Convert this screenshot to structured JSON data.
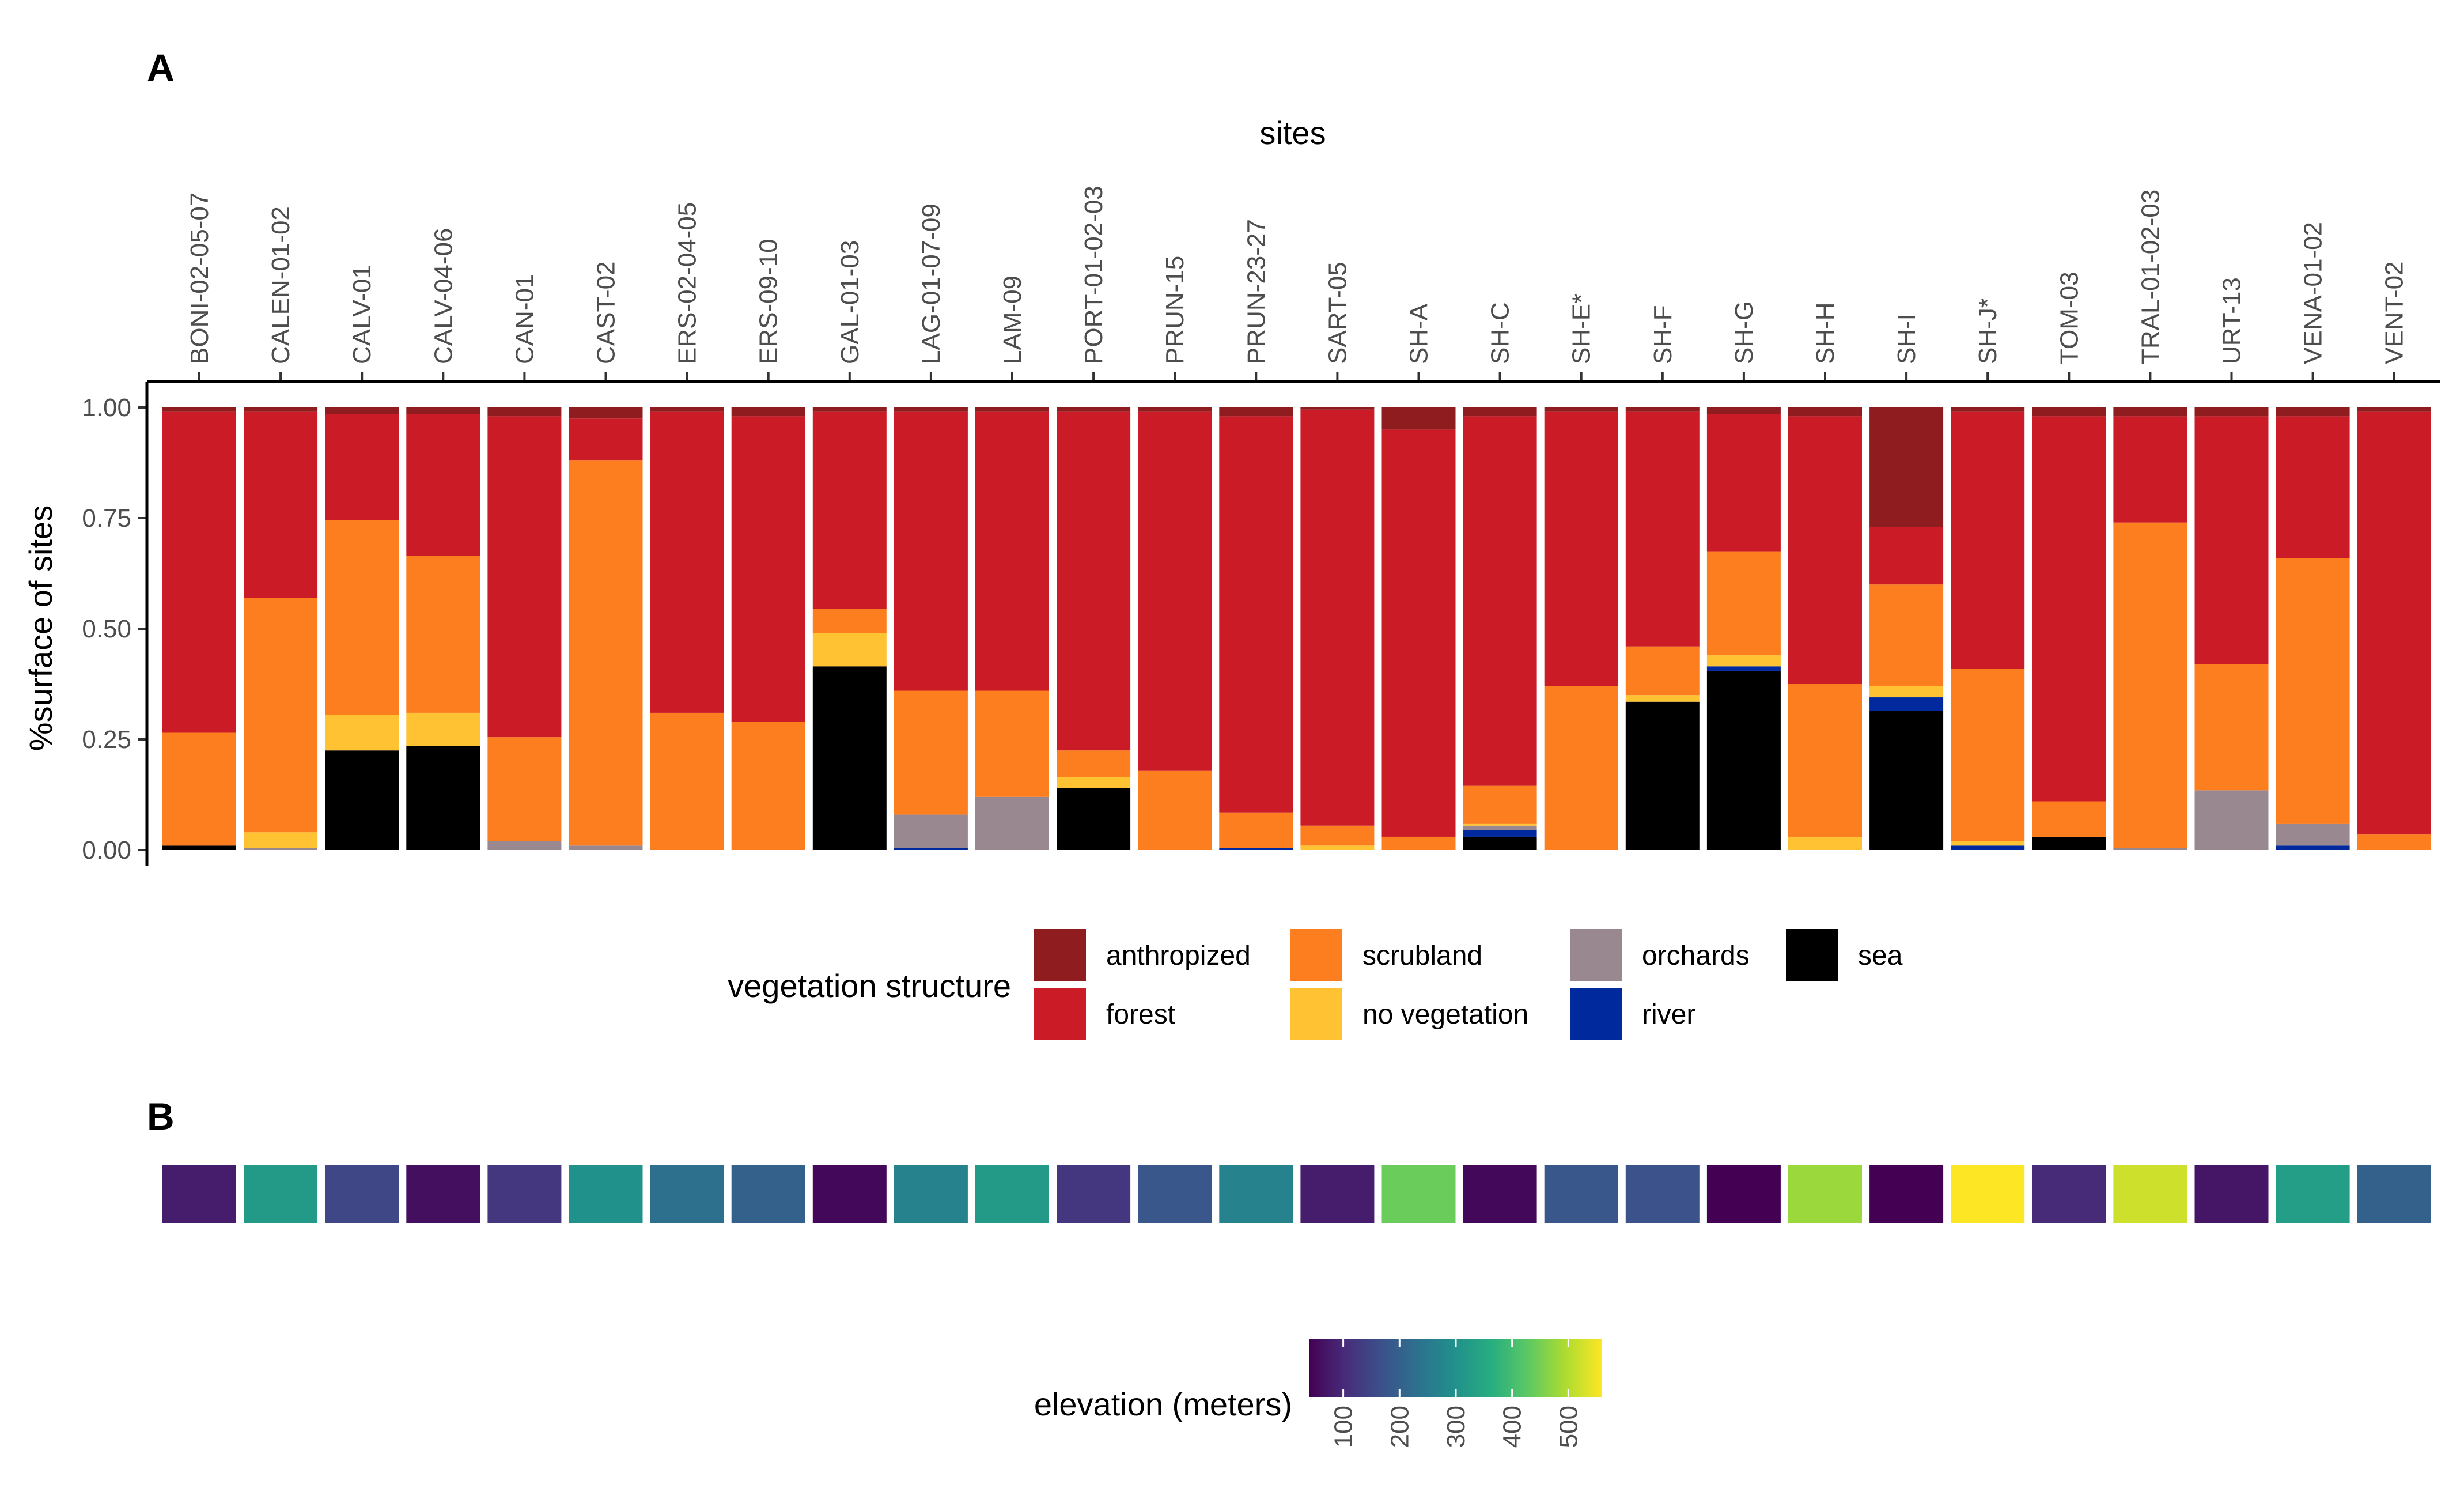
{
  "panel_a_label": "A",
  "panel_b_label": "B",
  "chart_data": [
    {
      "type": "bar",
      "stacked": true,
      "title": "",
      "xlabel": "sites",
      "xaxis_position": "top",
      "ylabel": "%surface of sites",
      "ylim": [
        0,
        1
      ],
      "yticks": [
        "0.00",
        "0.25",
        "0.50",
        "0.75",
        "1.00"
      ],
      "legend_title": "vegetation structure",
      "legend_position": "bottom",
      "categories": [
        "BONI-02-05-07",
        "CALEN-01-02",
        "CALV-01",
        "CALV-04-06",
        "CAN-01",
        "CAST-02",
        "ERS-02-04-05",
        "ERS-09-10",
        "GAL-01-03",
        "LAG-01-07-09",
        "LAM-09",
        "PORT-01-02-03",
        "PRUN-15",
        "PRUN-23-27",
        "SART-05",
        "SH-A",
        "SH-C",
        "SH-E*",
        "SH-F",
        "SH-G",
        "SH-H",
        "SH-I",
        "SH-J*",
        "TOM-03",
        "TRAL-01-02-03",
        "URT-13",
        "VENA-01-02",
        "VENT-02"
      ],
      "series": [
        {
          "name": "sea",
          "color": "#000000",
          "values": [
            0.01,
            0,
            0.225,
            0.235,
            0,
            0,
            0,
            0,
            0.415,
            0,
            0,
            0.14,
            0,
            0,
            0,
            0,
            0.03,
            0,
            0.335,
            0.405,
            0,
            0.315,
            0,
            0.03,
            0,
            0,
            0,
            0
          ]
        },
        {
          "name": "river",
          "color": "#00299e",
          "values": [
            0,
            0,
            0,
            0,
            0,
            0,
            0,
            0,
            0,
            0.005,
            0,
            0,
            0,
            0.005,
            0,
            0,
            0.015,
            0,
            0,
            0.01,
            0,
            0.03,
            0.01,
            0,
            0,
            0,
            0.01,
            0
          ]
        },
        {
          "name": "orchards",
          "color": "#9a8890",
          "values": [
            0,
            0.005,
            0,
            0,
            0.02,
            0.01,
            0,
            0,
            0,
            0.075,
            0.12,
            0,
            0,
            0,
            0,
            0,
            0.01,
            0,
            0,
            0,
            0,
            0,
            0,
            0,
            0.005,
            0.135,
            0.05,
            0
          ]
        },
        {
          "name": "no vegetation",
          "color": "#fec232",
          "values": [
            0,
            0.035,
            0.08,
            0.075,
            0,
            0,
            0,
            0,
            0.075,
            0,
            0,
            0.025,
            0,
            0,
            0.01,
            0,
            0.005,
            0,
            0.015,
            0.025,
            0.03,
            0.025,
            0.01,
            0,
            0,
            0,
            0,
            0
          ]
        },
        {
          "name": "scrubland",
          "color": "#fd7e1e",
          "values": [
            0.255,
            0.53,
            0.44,
            0.355,
            0.235,
            0.87,
            0.31,
            0.29,
            0.055,
            0.28,
            0.24,
            0.06,
            0.18,
            0.08,
            0.045,
            0.03,
            0.085,
            0.37,
            0.11,
            0.235,
            0.345,
            0.23,
            0.39,
            0.08,
            0.735,
            0.285,
            0.6,
            0.035
          ]
        },
        {
          "name": "forest",
          "color": "#cb1b26",
          "values": [
            0.725,
            0.42,
            0.24,
            0.32,
            0.725,
            0.095,
            0.68,
            0.69,
            0.445,
            0.63,
            0.63,
            0.765,
            0.81,
            0.895,
            0.94,
            0.92,
            0.835,
            0.62,
            0.53,
            0.31,
            0.605,
            0.13,
            0.58,
            0.87,
            0.24,
            0.56,
            0.32,
            0.955
          ]
        },
        {
          "name": "anthropized",
          "color": "#8f1c1f",
          "values": [
            0.01,
            0.01,
            0.015,
            0.015,
            0.02,
            0.025,
            0.01,
            0.02,
            0.01,
            0.01,
            0.01,
            0.01,
            0.01,
            0.02,
            0.005,
            0.05,
            0.02,
            0.01,
            0.01,
            0.015,
            0.02,
            0.27,
            0.01,
            0.02,
            0.02,
            0.02,
            0.02,
            0.01
          ]
        }
      ],
      "legend_entries": [
        {
          "name": "anthropized",
          "color": "#8f1c1f"
        },
        {
          "name": "forest",
          "color": "#cb1b26"
        },
        {
          "name": "scrubland",
          "color": "#fd7e1e"
        },
        {
          "name": "no vegetation",
          "color": "#fec232"
        },
        {
          "name": "orchards",
          "color": "#9a8890"
        },
        {
          "name": "river",
          "color": "#00299e"
        },
        {
          "name": "sea",
          "color": "#000000"
        }
      ]
    },
    {
      "type": "heatmap",
      "title": "",
      "colorbar_title": "elevation (meters)",
      "colorbar_range": [
        40,
        560
      ],
      "colorbar_ticks": [
        "100",
        "200",
        "300",
        "400",
        "500"
      ],
      "colorbar_tick_values": [
        100,
        200,
        300,
        400,
        500
      ],
      "colormap": "viridis",
      "categories": [
        "BONI-02-05-07",
        "CALEN-01-02",
        "CALV-01",
        "CALV-04-06",
        "CAN-01",
        "CAST-02",
        "ERS-02-04-05",
        "ERS-09-10",
        "GAL-01-03",
        "LAG-01-07-09",
        "LAM-09",
        "PORT-01-02-03",
        "PRUN-15",
        "PRUN-23-27",
        "SART-05",
        "SH-A",
        "SH-C",
        "SH-E*",
        "SH-F",
        "SH-G",
        "SH-H",
        "SH-I",
        "SH-J*",
        "TOM-03",
        "TRAL-01-02-03",
        "URT-13",
        "VENA-01-02",
        "VENT-02"
      ],
      "values": [
        80,
        320,
        150,
        60,
        120,
        300,
        230,
        200,
        50,
        270,
        320,
        120,
        180,
        270,
        80,
        440,
        50,
        180,
        170,
        30,
        480,
        40,
        560,
        100,
        520,
        70,
        330,
        200
      ]
    }
  ]
}
